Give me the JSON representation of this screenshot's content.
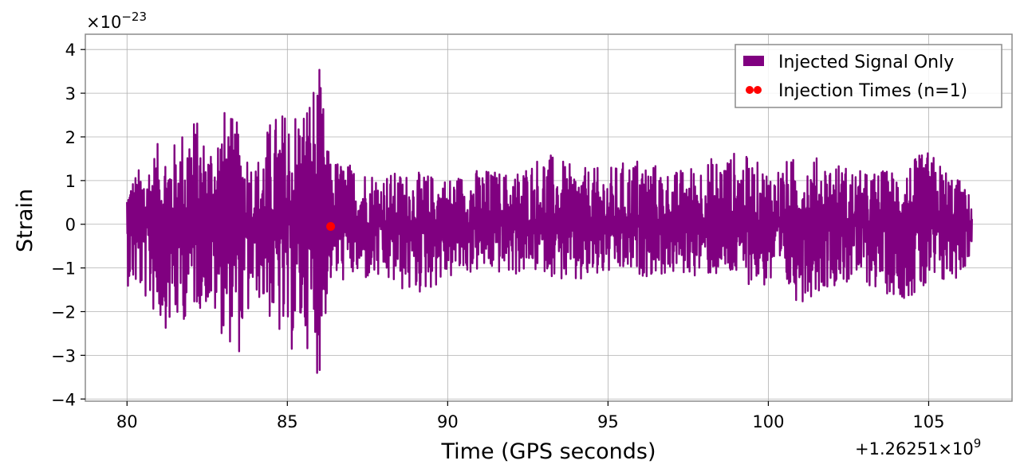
{
  "chart_data": {
    "type": "line",
    "xlabel": "Time (GPS seconds)",
    "ylabel": "Strain",
    "x_offset_text": "+1.26251×10",
    "x_offset_exp": "9",
    "y_multiplier_text": "×10",
    "y_multiplier_exp": "−23",
    "xlim": [
      78.7,
      107.6
    ],
    "ylim": [
      -4.05,
      4.35
    ],
    "x_ticks": [
      80,
      85,
      90,
      95,
      100,
      105
    ],
    "x_tick_labels": [
      "80",
      "85",
      "90",
      "95",
      "100",
      "105"
    ],
    "y_ticks": [
      -4,
      -3,
      -2,
      -1,
      0,
      1,
      2,
      3,
      4
    ],
    "y_tick_labels": [
      "−4",
      "−3",
      "−2",
      "−1",
      "0",
      "1",
      "2",
      "3",
      "4"
    ],
    "grid": true,
    "legend_position": "top-right",
    "series": [
      {
        "name": "Injected Signal Only",
        "kind": "line",
        "color": "#800080",
        "x_start": 80.0,
        "x_end": 106.35,
        "envelope": [
          {
            "x": 80.0,
            "max": 1.0,
            "min": -1.4
          },
          {
            "x": 80.5,
            "max": 1.4,
            "min": -1.7
          },
          {
            "x": 81.0,
            "max": 1.9,
            "min": -2.3
          },
          {
            "x": 81.5,
            "max": 1.9,
            "min": -2.5
          },
          {
            "x": 82.0,
            "max": 2.7,
            "min": -2.0
          },
          {
            "x": 82.5,
            "max": 1.9,
            "min": -1.9
          },
          {
            "x": 83.0,
            "max": 2.7,
            "min": -2.6
          },
          {
            "x": 83.5,
            "max": 2.3,
            "min": -3.0
          },
          {
            "x": 84.0,
            "max": 1.4,
            "min": -1.6
          },
          {
            "x": 84.5,
            "max": 2.5,
            "min": -2.3
          },
          {
            "x": 85.0,
            "max": 2.7,
            "min": -3.1
          },
          {
            "x": 85.5,
            "max": 2.9,
            "min": -2.6
          },
          {
            "x": 86.0,
            "max": 3.6,
            "min": -3.6
          },
          {
            "x": 86.3,
            "max": 1.6,
            "min": -1.4
          },
          {
            "x": 87.0,
            "max": 1.4,
            "min": -1.3
          },
          {
            "x": 88.0,
            "max": 1.2,
            "min": -1.4
          },
          {
            "x": 89.0,
            "max": 1.2,
            "min": -1.7
          },
          {
            "x": 90.0,
            "max": 1.1,
            "min": -1.3
          },
          {
            "x": 91.0,
            "max": 1.3,
            "min": -1.1
          },
          {
            "x": 92.0,
            "max": 1.2,
            "min": -1.2
          },
          {
            "x": 93.0,
            "max": 1.7,
            "min": -1.1
          },
          {
            "x": 94.0,
            "max": 1.3,
            "min": -1.5
          },
          {
            "x": 95.0,
            "max": 1.3,
            "min": -1.2
          },
          {
            "x": 96.0,
            "max": 1.6,
            "min": -1.2
          },
          {
            "x": 97.0,
            "max": 1.2,
            "min": -1.2
          },
          {
            "x": 98.0,
            "max": 1.5,
            "min": -1.2
          },
          {
            "x": 99.0,
            "max": 1.7,
            "min": -1.3
          },
          {
            "x": 100.0,
            "max": 1.3,
            "min": -1.5
          },
          {
            "x": 101.0,
            "max": 1.6,
            "min": -1.8
          },
          {
            "x": 102.0,
            "max": 1.5,
            "min": -1.4
          },
          {
            "x": 103.0,
            "max": 1.2,
            "min": -1.4
          },
          {
            "x": 104.0,
            "max": 1.3,
            "min": -1.7
          },
          {
            "x": 105.0,
            "max": 1.7,
            "min": -1.7
          },
          {
            "x": 106.0,
            "max": 1.0,
            "min": -1.2
          },
          {
            "x": 106.35,
            "max": 0.6,
            "min": -0.7
          }
        ]
      },
      {
        "name": "Injection Times (n=1)",
        "kind": "scatter",
        "color": "#ff0000",
        "points": [
          {
            "x": 86.35,
            "y": -0.05
          }
        ]
      }
    ]
  }
}
